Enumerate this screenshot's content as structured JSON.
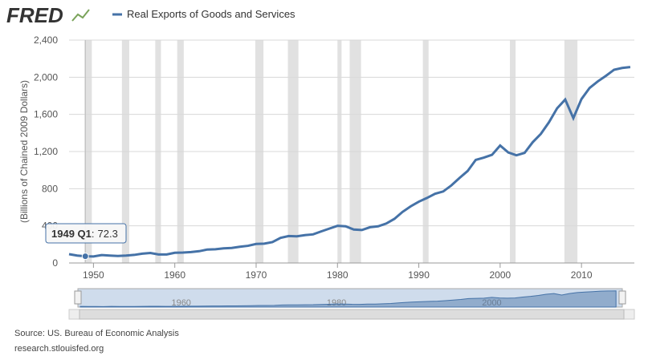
{
  "chart_data": {
    "type": "line",
    "logo": "FRED",
    "ylabel": "(Billions of Chained 2009 Dollars)",
    "source": "Source: US. Bureau of Economic Analysis",
    "site": "research.stlouisfed.org",
    "x": [
      1947,
      1948,
      1949,
      1950,
      1951,
      1952,
      1953,
      1954,
      1955,
      1956,
      1957,
      1958,
      1959,
      1960,
      1961,
      1962,
      1963,
      1964,
      1965,
      1966,
      1967,
      1968,
      1969,
      1970,
      1971,
      1972,
      1973,
      1974,
      1975,
      1976,
      1977,
      1978,
      1979,
      1980,
      1981,
      1982,
      1983,
      1984,
      1985,
      1986,
      1987,
      1988,
      1989,
      1990,
      1991,
      1992,
      1993,
      1994,
      1995,
      1996,
      1997,
      1998,
      1999,
      2000,
      2001,
      2002,
      2003,
      2004,
      2005,
      2006,
      2007,
      2008,
      2009,
      2010,
      2011,
      2012,
      2013,
      2014,
      2015,
      2016
    ],
    "series": [
      {
        "name": "Real Exports of Goods and Services",
        "color": "#4572a7",
        "values": [
          95,
          80,
          72.3,
          70,
          85,
          80,
          76,
          80,
          87,
          100,
          108,
          92,
          92,
          110,
          112,
          118,
          127,
          145,
          148,
          158,
          162,
          175,
          185,
          205,
          208,
          225,
          270,
          290,
          287,
          300,
          308,
          340,
          370,
          400,
          395,
          360,
          355,
          385,
          395,
          425,
          475,
          550,
          610,
          660,
          700,
          745,
          770,
          835,
          915,
          990,
          1110,
          1135,
          1165,
          1265,
          1190,
          1160,
          1185,
          1300,
          1390,
          1515,
          1665,
          1760,
          1560,
          1765,
          1885,
          1955,
          2015,
          2080,
          2100,
          2110
        ]
      }
    ],
    "xlim": [
      1947,
      2016.5
    ],
    "xticks": [
      1950,
      1960,
      1970,
      1980,
      1990,
      2000,
      2010
    ],
    "ylim": [
      0,
      2400
    ],
    "yticks": [
      0,
      400,
      800,
      {
        "value": 1200,
        "label": "1,200"
      },
      {
        "value": 1600,
        "label": "1,600"
      },
      {
        "value": 2000,
        "label": "2,000"
      },
      {
        "value": 2400,
        "label": "2,400"
      }
    ],
    "grid": true,
    "recessions": [
      [
        1948.9,
        1949.8
      ],
      [
        1953.5,
        1954.4
      ],
      [
        1957.6,
        1958.3
      ],
      [
        1960.3,
        1961.1
      ],
      [
        1969.9,
        1970.9
      ],
      [
        1973.9,
        1975.2
      ],
      [
        1980.0,
        1980.5
      ],
      [
        1981.5,
        1982.9
      ],
      [
        1990.5,
        1991.2
      ],
      [
        2001.2,
        2001.9
      ],
      [
        2007.9,
        2009.5
      ]
    ],
    "tooltip": {
      "x": 1949,
      "label": "1949 Q1",
      "separator": ":",
      "value": 72.3
    },
    "navigator_xticks": [
      1960,
      1980,
      2000
    ]
  }
}
